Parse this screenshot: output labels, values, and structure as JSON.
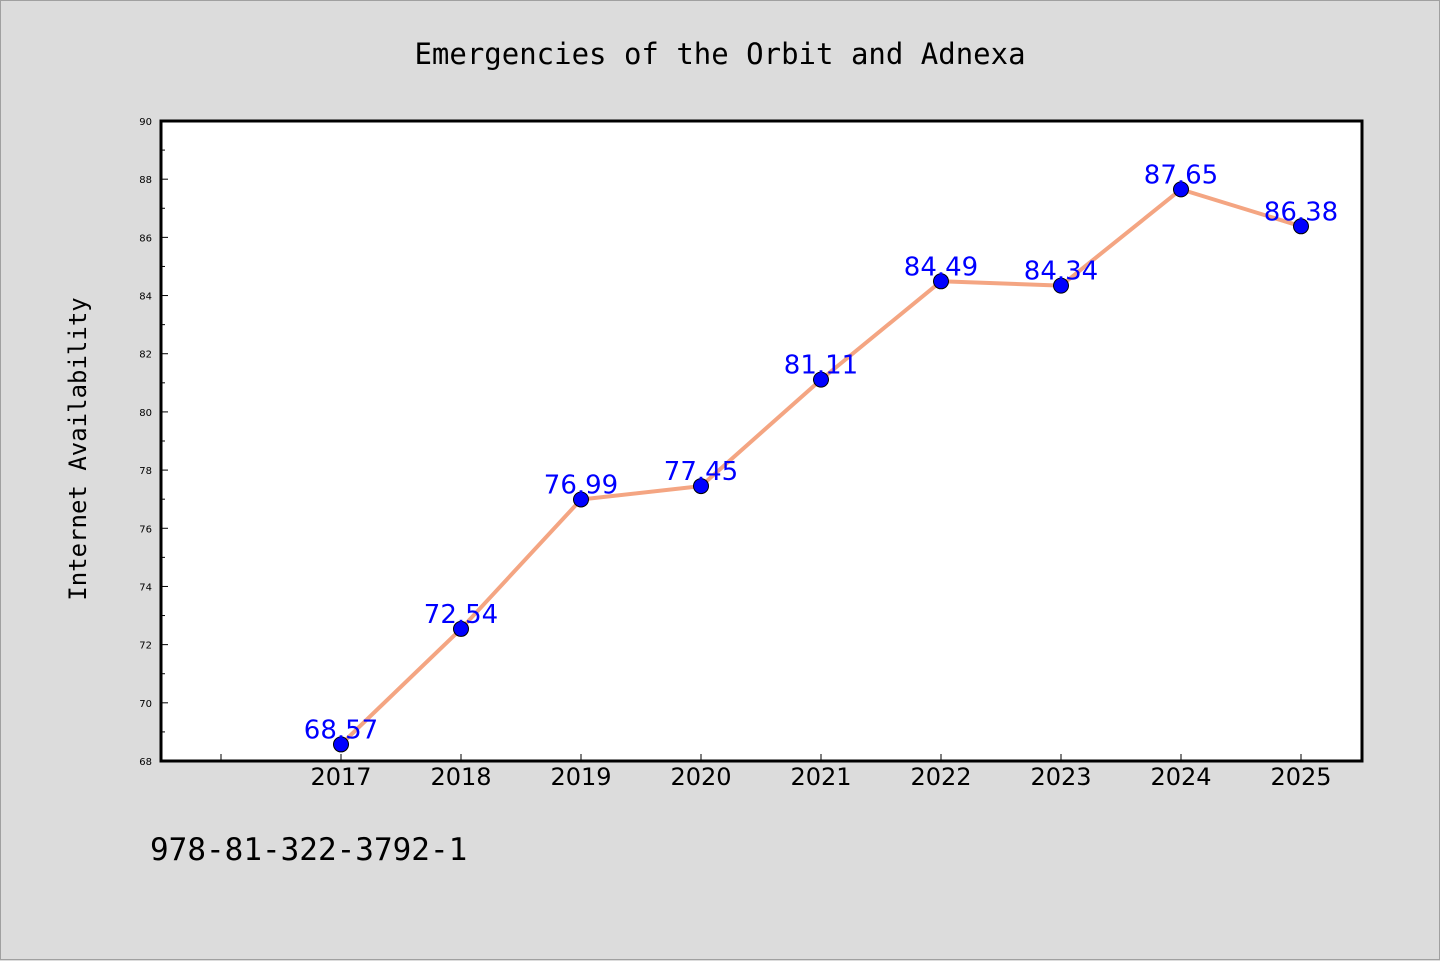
{
  "chart_data": {
    "type": "line",
    "title": "Emergencies of the Orbit and Adnexa",
    "xlabel": "",
    "ylabel": "Internet Availability",
    "categories": [
      "2017",
      "2018",
      "2019",
      "2020",
      "2021",
      "2022",
      "2023",
      "2024",
      "2025"
    ],
    "series": [
      {
        "values": [
          68.57,
          72.54,
          76.99,
          77.45,
          81.11,
          84.49,
          84.34,
          87.65,
          86.38
        ],
        "data_labels": [
          "68.57",
          "72.54",
          "76.99",
          "77.45",
          "81.11",
          "84.49",
          "84.34",
          "87.65",
          "86.38"
        ],
        "line_color": "#f4a582",
        "marker_color": "#0000ff",
        "label_color": "#0000ff"
      }
    ],
    "ylim": [
      68,
      90
    ],
    "yticks": [
      68,
      70,
      72,
      74,
      76,
      78,
      80,
      82,
      84,
      86,
      88,
      90
    ],
    "ytick_labels": [
      "68",
      "70",
      "72",
      "74",
      "76",
      "78",
      "80",
      "82",
      "84",
      "86",
      "88",
      "90"
    ],
    "grid": false,
    "legend": "none"
  },
  "footer_text": "978-81-322-3792-1",
  "colors": {
    "background": "#dcdcdc",
    "plot_background": "#ffffff"
  }
}
